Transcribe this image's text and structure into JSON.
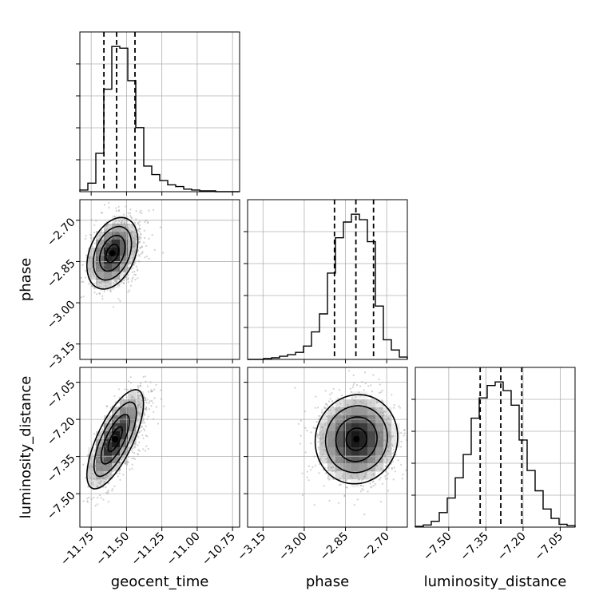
{
  "chart_data": {
    "type": "corner",
    "parameters": [
      "geocent_time",
      "phase",
      "luminosity_distance"
    ],
    "axis_labels": {
      "x": [
        "geocent_time",
        "phase",
        "luminosity_distance"
      ],
      "y": [
        "",
        "phase",
        "luminosity_distance"
      ]
    },
    "ranges": {
      "geocent_time": [
        -11.83,
        -10.7
      ],
      "phase": [
        -3.206,
        -2.625
      ],
      "luminosity_distance": [
        -7.635,
        -6.99
      ]
    },
    "ticks": {
      "geocent_time": {
        "values": [
          -11.75,
          -11.5,
          -11.25,
          -11.0,
          -10.75
        ],
        "labels": [
          "−11.75",
          "−11.50",
          "−11.25",
          "−11.00",
          "−10.75"
        ]
      },
      "phase": {
        "values": [
          -3.15,
          -3.0,
          -2.85,
          -2.7
        ],
        "labels": [
          "−3.15",
          "−3.00",
          "−2.85",
          "−2.70"
        ]
      },
      "luminosity_distance": {
        "values": [
          -7.5,
          -7.35,
          -7.2,
          -7.05
        ],
        "labels": [
          "−7.50",
          "−7.35",
          "−7.20",
          "−7.05"
        ]
      }
    },
    "quantiles": {
      "geocent_time": [
        -11.66,
        -11.57,
        -11.44
      ],
      "phase": [
        -2.89,
        -2.812,
        -2.748
      ],
      "luminosity_distance": [
        -7.373,
        -7.29,
        -7.205
      ]
    },
    "marginals": {
      "geocent_time": {
        "edges_start": -11.83,
        "bin_width": 0.0565,
        "counts": [
          2,
          10,
          45,
          120,
          170,
          168,
          130,
          75,
          30,
          20,
          13,
          8,
          6,
          3,
          2,
          1,
          1,
          0,
          0,
          0
        ]
      },
      "phase": {
        "edges_start": -3.206,
        "bin_width": 0.02905,
        "counts": [
          0,
          0,
          1,
          2,
          4,
          6,
          9,
          17,
          35,
          58,
          110,
          155,
          175,
          185,
          178,
          150,
          68,
          25,
          12,
          3
        ]
      },
      "luminosity_distance": {
        "edges_start": -7.635,
        "bin_width": 0.03225,
        "counts": [
          1,
          3,
          8,
          20,
          40,
          68,
          100,
          150,
          178,
          195,
          200,
          188,
          168,
          120,
          78,
          50,
          25,
          12,
          4,
          2
        ]
      }
    },
    "joint": [
      {
        "x": "geocent_time",
        "y": "phase",
        "mean": [
          -11.6,
          -2.82
        ],
        "sd": [
          0.09,
          0.065
        ],
        "rho": 0.35
      },
      {
        "x": "geocent_time",
        "y": "luminosity_distance",
        "mean": [
          -11.58,
          -7.28
        ],
        "sd": [
          0.1,
          0.1
        ],
        "rho": 0.72
      },
      {
        "x": "phase",
        "y": "luminosity_distance",
        "mean": [
          -2.81,
          -7.28
        ],
        "sd": [
          0.075,
          0.09
        ],
        "rho": 0.05
      }
    ],
    "contour_levels": [
      0.118,
      0.393,
      0.675,
      0.865
    ],
    "grid": true
  }
}
